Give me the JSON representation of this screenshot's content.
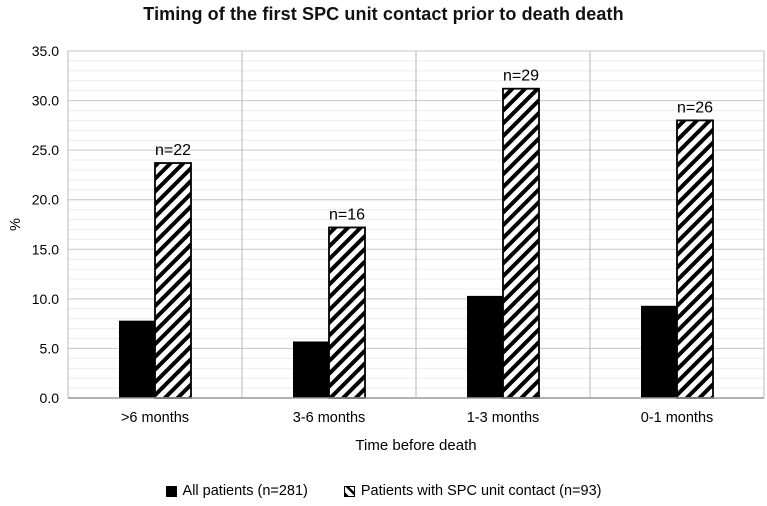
{
  "chart_data": {
    "type": "bar",
    "title": "Timing of the first SPC unit contact prior to death death",
    "categories": [
      ">6 months",
      "3-6 months",
      "1-3 months",
      "0-1 months"
    ],
    "series": [
      {
        "name": "All patients (n=281)",
        "style": "solid-black",
        "values": [
          7.8,
          5.7,
          10.3,
          9.3
        ]
      },
      {
        "name": "Patients with SPC unit contact (n=93)",
        "style": "diagonal-hatch",
        "values": [
          23.7,
          17.2,
          31.2,
          28.0
        ],
        "point_labels": [
          "n=22",
          "n=16",
          "n=29",
          "n=26"
        ]
      }
    ],
    "xlabel": "Time before death",
    "ylabel": "%",
    "ylim": [
      0,
      35
    ],
    "y_major_step": 5,
    "y_minor_step": 1,
    "y_tick_labels": [
      "0.0",
      "5.0",
      "10.0",
      "15.0",
      "20.0",
      "25.0",
      "30.0",
      "35.0"
    ],
    "grid": true,
    "legend_position": "bottom"
  },
  "colors": {
    "bar_solid": "#000000",
    "hatch_stripe": "#000000",
    "hatch_background": "#ffffff",
    "minor_grid": "#ececec",
    "major_grid": "#c6c6c6",
    "vertical_grid": "#b9b9b9",
    "axis_line": "#999999",
    "text": "#000000",
    "background": "#ffffff"
  }
}
